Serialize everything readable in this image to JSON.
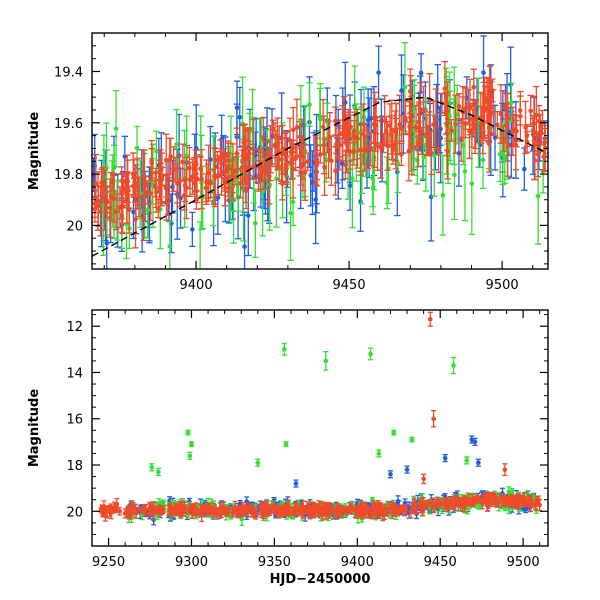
{
  "chart_data": [
    {
      "type": "scatter",
      "panel": "top",
      "title": "",
      "xlabel": "",
      "ylabel": "Magnitude",
      "xlim": [
        9366,
        9515
      ],
      "ylim": [
        20.17,
        19.25
      ],
      "y_inverted": true,
      "xticks": [
        9400,
        9450,
        9500
      ],
      "xtick_labels": [
        "9400",
        "9450",
        "9500"
      ],
      "yticks": [
        19.4,
        19.6,
        19.8,
        20.0
      ],
      "ytick_labels": [
        "19.4",
        "19.6",
        "19.8",
        "20"
      ],
      "grid": false,
      "colors": {
        "blue": "#1f5fe0",
        "green": "#33e033",
        "red": "#f04a2a",
        "trend": "#000000"
      },
      "series": [
        {
          "name": "blue",
          "color": "#1f5fe0",
          "count": 150,
          "mag_start": 19.93,
          "mag_end": 19.55,
          "scatter": 0.2,
          "err_min": 0.06,
          "err_max": 0.18
        },
        {
          "name": "green",
          "color": "#33e033",
          "count": 110,
          "mag_start": 19.92,
          "mag_end": 19.6,
          "scatter": 0.24,
          "err_min": 0.07,
          "err_max": 0.2
        },
        {
          "name": "red",
          "color": "#f04a2a",
          "count": 320,
          "mag_start": 19.9,
          "mag_end": 19.55,
          "scatter": 0.11,
          "err_min": 0.03,
          "err_max": 0.12
        }
      ],
      "trend_line": {
        "x": [
          9366,
          9400,
          9430,
          9460,
          9475,
          9490,
          9515
        ],
        "y": [
          20.12,
          19.9,
          19.7,
          19.52,
          19.5,
          19.57,
          19.72
        ]
      }
    },
    {
      "type": "scatter",
      "panel": "bottom",
      "title": "",
      "xlabel": "HJD−2450000",
      "ylabel": "Magnitude",
      "xlim": [
        9240,
        9515
      ],
      "ylim": [
        21.5,
        11.3
      ],
      "y_inverted": true,
      "xticks": [
        9250,
        9300,
        9350,
        9400,
        9450,
        9500
      ],
      "xtick_labels": [
        "9250",
        "9300",
        "9350",
        "9400",
        "9450",
        "9500"
      ],
      "yticks": [
        12,
        14,
        16,
        18,
        20
      ],
      "ytick_labels": [
        "12",
        "14",
        "16",
        "18",
        "20"
      ],
      "grid": false,
      "series": [
        {
          "name": "blue",
          "color": "#1f5fe0",
          "count": 260,
          "x_start": 9262,
          "x_end": 9508
        },
        {
          "name": "green",
          "color": "#33e033",
          "count": 200,
          "x_start": 9262,
          "x_end": 9508
        },
        {
          "name": "red",
          "color": "#f04a2a",
          "count": 420,
          "x_start": 9245,
          "x_end": 9510
        }
      ],
      "outliers": [
        {
          "series": "red",
          "x": 9444,
          "y": 11.7,
          "err": 0.3
        },
        {
          "series": "red",
          "x": 9446,
          "y": 16.0,
          "err": 0.35
        },
        {
          "series": "red",
          "x": 9489,
          "y": 18.2,
          "err": 0.25
        },
        {
          "series": "red",
          "x": 9440,
          "y": 18.6,
          "err": 0.2
        },
        {
          "series": "red",
          "x": 9255,
          "y": 19.7,
          "err": 0.25
        },
        {
          "series": "green",
          "x": 9356,
          "y": 13.0,
          "err": 0.25
        },
        {
          "series": "green",
          "x": 9381,
          "y": 13.5,
          "err": 0.4
        },
        {
          "series": "green",
          "x": 9408,
          "y": 13.2,
          "err": 0.25
        },
        {
          "series": "green",
          "x": 9458,
          "y": 13.7,
          "err": 0.35
        },
        {
          "series": "green",
          "x": 9357,
          "y": 17.1,
          "err": 0.1
        },
        {
          "series": "green",
          "x": 9298,
          "y": 16.6,
          "err": 0.1
        },
        {
          "series": "green",
          "x": 9300,
          "y": 17.1,
          "err": 0.1
        },
        {
          "series": "green",
          "x": 9422,
          "y": 16.6,
          "err": 0.1
        },
        {
          "series": "green",
          "x": 9433,
          "y": 16.9,
          "err": 0.1
        },
        {
          "series": "green",
          "x": 9276,
          "y": 18.1,
          "err": 0.15
        },
        {
          "series": "green",
          "x": 9280,
          "y": 18.3,
          "err": 0.15
        },
        {
          "series": "green",
          "x": 9299,
          "y": 17.6,
          "err": 0.15
        },
        {
          "series": "green",
          "x": 9340,
          "y": 17.9,
          "err": 0.15
        },
        {
          "series": "green",
          "x": 9413,
          "y": 17.5,
          "err": 0.15
        },
        {
          "series": "green",
          "x": 9466,
          "y": 17.8,
          "err": 0.15
        },
        {
          "series": "blue",
          "x": 9469,
          "y": 16.9,
          "err": 0.15
        },
        {
          "series": "blue",
          "x": 9471,
          "y": 17.0,
          "err": 0.15
        },
        {
          "series": "blue",
          "x": 9453,
          "y": 17.7,
          "err": 0.15
        },
        {
          "series": "blue",
          "x": 9473,
          "y": 17.9,
          "err": 0.15
        },
        {
          "series": "blue",
          "x": 9420,
          "y": 18.4,
          "err": 0.15
        },
        {
          "series": "blue",
          "x": 9363,
          "y": 18.8,
          "err": 0.15
        },
        {
          "series": "blue",
          "x": 9430,
          "y": 18.2,
          "err": 0.15
        }
      ]
    }
  ]
}
